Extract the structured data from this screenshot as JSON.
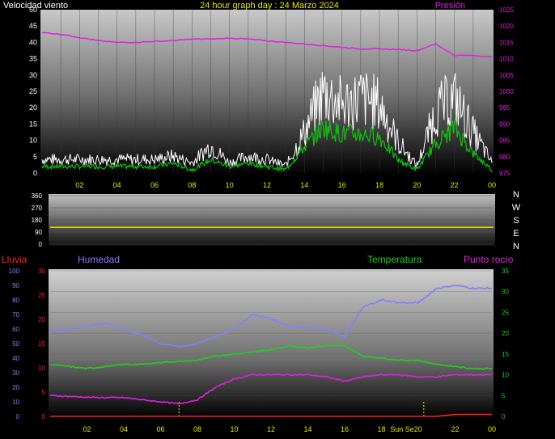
{
  "title": "24 hour graph day : 24 Marzo 2024",
  "colors": {
    "wind": "#ffffff",
    "wind_avg": "#10c010",
    "pressure": "#e020e0",
    "direction": "#d8d800",
    "rain": "#ff2020",
    "humidity": "#8080ff",
    "temperature": "#20d020",
    "dewpoint": "#e020e0",
    "axis_text": "#ffffff",
    "hour_text": "#e8e800"
  },
  "hour_labels": [
    "02",
    "04",
    "06",
    "08",
    "10",
    "12",
    "14",
    "16",
    "18",
    "20",
    "22",
    "00"
  ],
  "chart_data": [
    {
      "type": "line",
      "title": "",
      "left_axis_label": "Velocidad viento",
      "right_axis_label": "Presión",
      "left_ticks": [
        0,
        5,
        10,
        15,
        20,
        25,
        30,
        35,
        40,
        45,
        50
      ],
      "right_ticks": [
        975,
        980,
        985,
        990,
        995,
        1000,
        1005,
        1010,
        1015,
        1020,
        1025
      ],
      "ylim_left": [
        0,
        50
      ],
      "ylim_right": [
        975,
        1025
      ],
      "x_hours": [
        0,
        1,
        2,
        3,
        4,
        5,
        6,
        7,
        8,
        9,
        10,
        11,
        12,
        13,
        14,
        15,
        16,
        17,
        18,
        19,
        20,
        21,
        22,
        23,
        24
      ],
      "series": [
        {
          "name": "Velocidad viento",
          "axis": "left",
          "values": [
            4,
            4,
            4,
            4,
            4,
            4,
            4,
            5,
            3,
            8,
            3,
            5,
            4,
            2,
            12,
            24,
            20,
            22,
            20,
            9,
            2,
            18,
            22,
            12,
            3
          ]
        },
        {
          "name": "",
          "axis": "left",
          "values": [
            2,
            2,
            2,
            2,
            2,
            2,
            2,
            3,
            1,
            4,
            2,
            3,
            2,
            1,
            8,
            14,
            12,
            12,
            11,
            4,
            1,
            9,
            14,
            6,
            1
          ]
        },
        {
          "name": "Presión",
          "axis": "right",
          "values": [
            1018,
            1017.5,
            1016.5,
            1015.5,
            1015,
            1015,
            1015.3,
            1015.5,
            1016,
            1016,
            1016.3,
            1016,
            1015.5,
            1015,
            1014.5,
            1014,
            1013.5,
            1013,
            1013,
            1012.8,
            1012.5,
            1014.5,
            1011,
            1011,
            1010.5
          ]
        }
      ]
    },
    {
      "type": "line",
      "title": "",
      "right_labels": [
        "N",
        "W",
        "S",
        "E",
        "N"
      ],
      "left_ticks": [
        0,
        90,
        180,
        270,
        360
      ],
      "ylim": [
        0,
        360
      ],
      "series": [
        {
          "name": "",
          "x": [
            0,
            24
          ],
          "values": [
            125,
            125
          ]
        }
      ]
    },
    {
      "type": "line",
      "title": "",
      "left_axis_labels": [
        "Lluvia",
        "Humedad"
      ],
      "right_axis_labels": [
        "Temperatura",
        "Punto rocío"
      ],
      "rain_ticks": [
        0,
        5,
        10,
        15,
        20,
        25,
        30
      ],
      "humidity_ticks": [
        0,
        10,
        20,
        30,
        40,
        50,
        60,
        70,
        80,
        90,
        100
      ],
      "temp_ticks": [
        0,
        5,
        10,
        15,
        20,
        25,
        30,
        35
      ],
      "ylim_rain": [
        0,
        30
      ],
      "ylim_humidity": [
        0,
        100
      ],
      "ylim_temp": [
        0,
        35
      ],
      "x_hours": [
        0,
        1,
        2,
        3,
        4,
        5,
        6,
        7,
        8,
        9,
        10,
        11,
        12,
        13,
        14,
        15,
        16,
        17,
        18,
        19,
        20,
        21,
        22,
        23,
        24
      ],
      "x_annotation": "Sun Se20",
      "series": [
        {
          "name": "Humedad",
          "axis": "humidity",
          "values": [
            58,
            60,
            62,
            64,
            60,
            56,
            50,
            48,
            50,
            55,
            60,
            70,
            67,
            62,
            61,
            60,
            55,
            75,
            80,
            78,
            78,
            88,
            90,
            88,
            88
          ]
        },
        {
          "name": "Temperatura",
          "axis": "temp",
          "values": [
            12.5,
            12,
            11.5,
            12,
            12.5,
            12.5,
            13,
            13.2,
            13.5,
            14.5,
            15,
            15.5,
            16,
            17,
            16.5,
            17,
            17,
            14.5,
            14,
            13.5,
            13.5,
            12.5,
            12,
            11.5,
            11.5
          ]
        },
        {
          "name": "Punto rocío",
          "axis": "temp",
          "values": [
            5,
            4.8,
            4.6,
            4.5,
            4.5,
            4,
            3.5,
            3,
            4,
            7,
            9,
            10,
            10,
            10,
            10,
            9.5,
            8.5,
            9.5,
            10,
            10,
            9.5,
            9.5,
            10,
            10,
            10
          ]
        },
        {
          "name": "Lluvia",
          "axis": "rain",
          "values": [
            0,
            0,
            0,
            0,
            0,
            0,
            0,
            0,
            0,
            0,
            0,
            0,
            0,
            0,
            0,
            0,
            0,
            0,
            0,
            0,
            0,
            0,
            0.4,
            0.4,
            0.4
          ]
        }
      ]
    }
  ]
}
